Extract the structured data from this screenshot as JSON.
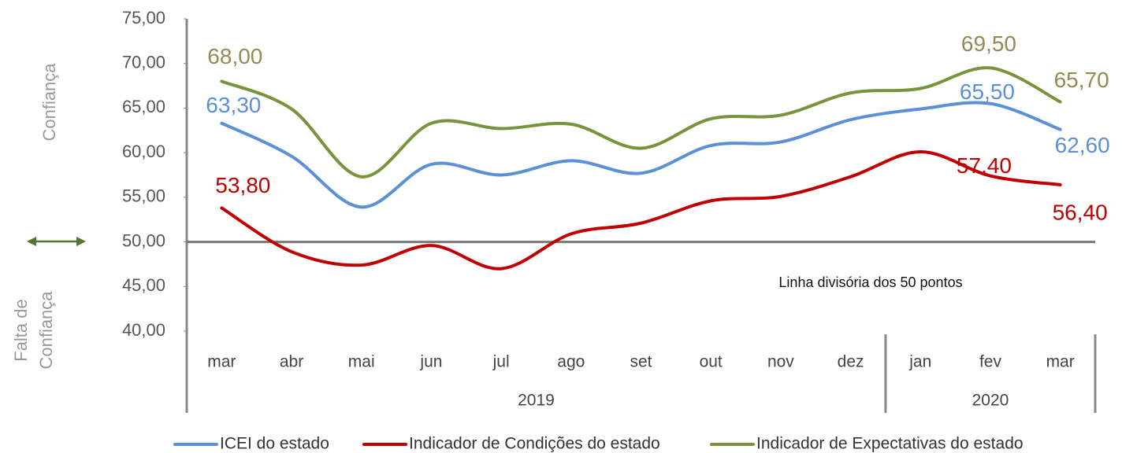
{
  "chart_data": {
    "type": "line",
    "categories": [
      "mar",
      "abr",
      "mai",
      "jun",
      "jul",
      "ago",
      "set",
      "out",
      "nov",
      "dez",
      "jan",
      "fev",
      "mar"
    ],
    "groups": [
      {
        "label": "2019",
        "count": 10
      },
      {
        "label": "2020",
        "count": 3
      }
    ],
    "series": [
      {
        "name": "ICEI do estado",
        "color": "#5b8fd6",
        "label_color": "#5b8fd6",
        "values": [
          63.3,
          59.6,
          53.9,
          58.7,
          57.5,
          59.1,
          57.7,
          60.8,
          61.2,
          63.7,
          64.9,
          65.5,
          62.6
        ],
        "value_labels": [
          "63,30",
          null,
          null,
          null,
          null,
          null,
          null,
          null,
          null,
          null,
          null,
          "65,50",
          "62,60"
        ]
      },
      {
        "name": "Indicador de Condições do estado",
        "color": "#c00000",
        "label_color": "#c00000",
        "values": [
          53.8,
          48.9,
          47.4,
          49.6,
          47.0,
          50.9,
          52.1,
          54.6,
          55.1,
          57.3,
          60.1,
          57.4,
          56.4
        ],
        "value_labels": [
          "53,80",
          null,
          null,
          null,
          null,
          null,
          null,
          null,
          null,
          null,
          null,
          "57,40",
          "56,40"
        ]
      },
      {
        "name": "Indicador de Expectativas do estado",
        "color": "#77933c",
        "label_color": "#948a54",
        "values": [
          68.0,
          64.9,
          57.3,
          63.3,
          62.7,
          63.2,
          60.5,
          63.8,
          64.2,
          66.7,
          67.2,
          69.5,
          65.7
        ],
        "value_labels": [
          "68,00",
          null,
          null,
          null,
          null,
          null,
          null,
          null,
          null,
          null,
          null,
          "69,50",
          "65,70"
        ]
      }
    ],
    "ylim": [
      40,
      75
    ],
    "yticks": [
      {
        "value": 40,
        "label": "40,00"
      },
      {
        "value": 45,
        "label": "45,00"
      },
      {
        "value": 50,
        "label": "50,00"
      },
      {
        "value": 55,
        "label": "55,00"
      },
      {
        "value": 60,
        "label": "60,00"
      },
      {
        "value": 65,
        "label": "65,00"
      },
      {
        "value": 70,
        "label": "70,00"
      },
      {
        "value": 75,
        "label": "75,00"
      }
    ],
    "hline": {
      "value": 50,
      "label": "Linha divisória dos 50 pontos"
    },
    "annotations": [
      "Confiança",
      "Falta de",
      "Confiança"
    ],
    "legend": "bottom"
  }
}
